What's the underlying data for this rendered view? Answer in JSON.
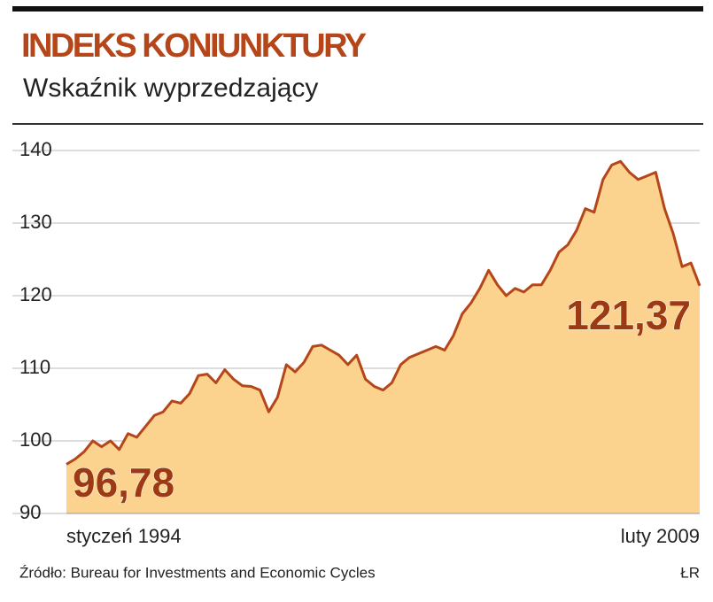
{
  "chart_data": {
    "type": "area",
    "title": "INDEKS KONIUNKTURY",
    "subtitle": "Wskaźnik wyprzedzający",
    "source": "Źródło: Bureau for Investments and Economic Cycles",
    "credit": "ŁR",
    "annotations": [
      "96,78",
      "121,37"
    ],
    "categories": [
      "styczeń 1994",
      null,
      null,
      null,
      null,
      null,
      null,
      null,
      null,
      null,
      null,
      null,
      null,
      null,
      null,
      null,
      null,
      null,
      null,
      null,
      null,
      null,
      null,
      null,
      null,
      null,
      null,
      null,
      null,
      null,
      null,
      null,
      null,
      null,
      null,
      null,
      null,
      null,
      null,
      null,
      null,
      null,
      null,
      null,
      null,
      null,
      null,
      null,
      null,
      null,
      null,
      null,
      null,
      null,
      null,
      null,
      null,
      null,
      null,
      null,
      null,
      null,
      null,
      null,
      null,
      null,
      null,
      null,
      null,
      null,
      null,
      null,
      "luty 2009"
    ],
    "values": [
      96.78,
      97.5,
      98.5,
      100,
      99.2,
      100,
      98.8,
      101,
      100.5,
      102,
      103.5,
      104,
      105.5,
      105.2,
      106.5,
      109,
      109.2,
      108,
      109.8,
      108.5,
      107.6,
      107.5,
      107,
      104,
      106,
      110.5,
      109.5,
      110.8,
      113,
      113.2,
      112.5,
      111.8,
      110.5,
      111.8,
      108.5,
      107.5,
      107,
      108,
      110.5,
      111.5,
      112,
      112.5,
      113,
      112.5,
      114.5,
      117.5,
      119,
      121,
      123.5,
      121.5,
      120,
      121,
      120.5,
      121.5,
      121.5,
      123.5,
      126,
      127,
      129,
      132,
      131.5,
      136,
      138,
      138.5,
      137,
      136,
      136.5,
      137,
      132,
      128.5,
      124,
      124.5,
      121.37
    ],
    "color": "#b5461a",
    "fill": "#fcd38e",
    "ylim": [
      90,
      140
    ],
    "yticks": [
      90,
      100,
      110,
      120,
      130,
      140
    ],
    "grid": true
  }
}
